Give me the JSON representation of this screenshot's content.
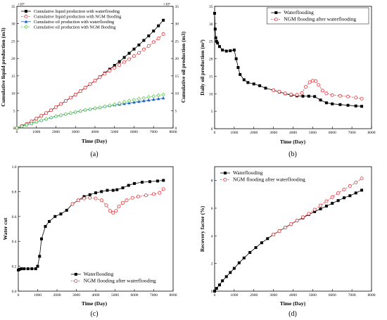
{
  "chart_data": [
    {
      "id": "a",
      "type": "line",
      "panel_label": "(a)",
      "xlabel": "Time (Day)",
      "ylabel": "Cumulative liquid production (m3)",
      "y2label": "Cumulative oil production (m3)",
      "multiplier_left": "×10⁴",
      "multiplier_right": "×10⁴",
      "xlim": [
        0,
        8000
      ],
      "ylim": [
        0,
        35
      ],
      "y2lim": [
        0,
        35
      ],
      "xticks": [
        0,
        1000,
        2000,
        3000,
        4000,
        5000,
        6000,
        7000,
        8000
      ],
      "yticks": [
        0,
        5,
        10,
        15,
        20,
        25,
        30,
        35
      ],
      "legend": "top-left",
      "series": [
        {
          "name": "Cumulative liquid production with waterflooding",
          "marker": "square",
          "color": "#000000",
          "x": [
            0,
            250,
            500,
            750,
            1000,
            1250,
            1500,
            1750,
            2000,
            2250,
            2500,
            2750,
            3000,
            3250,
            3500,
            3750,
            4000,
            4250,
            4500,
            4750,
            5000,
            5250,
            5500,
            5750,
            6000,
            6250,
            6500,
            6750,
            7000,
            7250,
            7500
          ],
          "y": [
            0,
            0.6,
            1.2,
            1.9,
            2.7,
            3.5,
            4.3,
            5.1,
            6.0,
            6.9,
            7.8,
            8.7,
            9.6,
            10.6,
            11.6,
            12.6,
            13.6,
            14.7,
            15.8,
            16.9,
            18.0,
            19.1,
            20.3,
            21.5,
            22.7,
            23.9,
            25.2,
            26.5,
            27.9,
            29.4,
            31.0
          ]
        },
        {
          "name": "Cumulative liquid production with NGM flooding",
          "marker": "circle-open",
          "color": "#e8343a",
          "x": [
            0,
            250,
            500,
            750,
            1000,
            1250,
            1500,
            1750,
            2000,
            2250,
            2500,
            2750,
            3000,
            3250,
            3500,
            3750,
            4000,
            4250,
            4500,
            4750,
            5000,
            5250,
            5500,
            5750,
            6000,
            6250,
            6500,
            6750,
            7000,
            7250,
            7500
          ],
          "y": [
            0,
            0.6,
            1.2,
            1.9,
            2.7,
            3.5,
            4.3,
            5.1,
            6.0,
            6.9,
            7.8,
            8.7,
            9.6,
            10.6,
            11.6,
            12.6,
            13.6,
            14.6,
            15.6,
            16.5,
            17.3,
            18.1,
            19.0,
            19.8,
            20.7,
            21.6,
            22.6,
            23.6,
            24.7,
            25.8,
            27.0
          ]
        },
        {
          "name": "Cumulative oil production with waterflooding",
          "marker": "triangle",
          "color": "#1f5fc8",
          "axis": "right",
          "x": [
            0,
            250,
            500,
            750,
            1000,
            1250,
            1500,
            1750,
            2000,
            2250,
            2500,
            2750,
            3000,
            3250,
            3500,
            3750,
            4000,
            4250,
            4500,
            4750,
            5000,
            5250,
            5500,
            5750,
            6000,
            6250,
            6500,
            6750,
            7000,
            7250,
            7500
          ],
          "y": [
            0,
            0.5,
            0.9,
            1.3,
            1.8,
            2.2,
            2.6,
            3.0,
            3.4,
            3.7,
            4.0,
            4.3,
            4.6,
            4.9,
            5.2,
            5.4,
            5.7,
            5.9,
            6.2,
            6.4,
            6.6,
            6.8,
            7.0,
            7.2,
            7.4,
            7.6,
            7.8,
            8.0,
            8.2,
            8.4,
            8.6
          ]
        },
        {
          "name": "Cumulative oil production with NGM flooding",
          "marker": "diamond-open",
          "color": "#66cc55",
          "axis": "right",
          "x": [
            0,
            250,
            500,
            750,
            1000,
            1250,
            1500,
            1750,
            2000,
            2250,
            2500,
            2750,
            3000,
            3250,
            3500,
            3750,
            4000,
            4250,
            4500,
            4750,
            5000,
            5250,
            5500,
            5750,
            6000,
            6250,
            6500,
            6750,
            7000,
            7250,
            7500
          ],
          "y": [
            0,
            0.5,
            0.9,
            1.3,
            1.8,
            2.2,
            2.6,
            3.0,
            3.4,
            3.7,
            4.0,
            4.3,
            4.6,
            4.9,
            5.2,
            5.4,
            5.7,
            5.9,
            6.2,
            6.5,
            6.8,
            7.1,
            7.5,
            7.8,
            8.1,
            8.4,
            8.6,
            8.9,
            9.1,
            9.4,
            9.6
          ]
        }
      ]
    },
    {
      "id": "b",
      "type": "line",
      "panel_label": "(b)",
      "xlabel": "Time (Day)",
      "ylabel": "Daily oil production (m³)",
      "xlim": [
        0,
        8000
      ],
      "ylim": [
        0,
        35
      ],
      "xticks": [
        0,
        1000,
        2000,
        3000,
        4000,
        5000,
        6000,
        7000,
        8000
      ],
      "yticks": [
        0,
        5,
        10,
        15,
        20,
        25,
        30,
        35
      ],
      "legend": "top-right",
      "series": [
        {
          "name": "Waterflooding",
          "marker": "square",
          "color": "#000000",
          "x": [
            0,
            30,
            60,
            100,
            150,
            250,
            400,
            600,
            800,
            1000,
            1100,
            1200,
            1300,
            1500,
            1700,
            2000,
            2300,
            2600,
            3000,
            3300,
            3600,
            3900,
            4200,
            4500,
            4800,
            5100,
            5400,
            5700,
            6000,
            6400,
            6800,
            7200,
            7500
          ],
          "y": [
            33,
            28.5,
            26,
            25,
            24.5,
            23.5,
            22.5,
            22.2,
            22.3,
            22.5,
            20,
            17.5,
            15.5,
            14,
            13.2,
            12.8,
            12.3,
            11.6,
            11,
            10.5,
            10,
            9.6,
            9.4,
            9.3,
            9.3,
            9.2,
            8.2,
            7.4,
            7.1,
            6.9,
            6.7,
            6.5,
            6.4
          ]
        },
        {
          "name": "NGM flooding after waterflooding",
          "marker": "circle-open",
          "color": "#e8343a",
          "x": [
            3000,
            3300,
            3600,
            3900,
            4200,
            4450,
            4650,
            4850,
            5000,
            5150,
            5300,
            5500,
            5700,
            6000,
            6400,
            6800,
            7200,
            7500
          ],
          "y": [
            11,
            10.6,
            10.1,
            9.8,
            9.7,
            10.2,
            12,
            13.3,
            13.7,
            13.6,
            12.5,
            10.9,
            10.1,
            9.6,
            9.4,
            9.2,
            8.9,
            8.6
          ]
        }
      ]
    },
    {
      "id": "c",
      "type": "line",
      "panel_label": "(c)",
      "xlabel": "Time (Day)",
      "ylabel": "Water cut",
      "xlim": [
        0,
        8000
      ],
      "ylim": [
        0.0,
        1.0
      ],
      "xticks": [
        0,
        1000,
        2000,
        3000,
        4000,
        5000,
        6000,
        7000,
        8000
      ],
      "yticks": [
        "0.0",
        "0.2",
        "0.4",
        "0.6",
        "0.8",
        "1.0"
      ],
      "legend": "bottom-right",
      "series": [
        {
          "name": "Waterflooding",
          "marker": "square",
          "color": "#000000",
          "x": [
            0,
            60,
            150,
            300,
            500,
            700,
            900,
            1000,
            1100,
            1200,
            1400,
            1600,
            1900,
            2200,
            2500,
            2800,
            3100,
            3400,
            3700,
            4000,
            4300,
            4600,
            4900,
            5100,
            5400,
            5700,
            6000,
            6400,
            6800,
            7200,
            7500
          ],
          "y": [
            0.17,
            0.175,
            0.18,
            0.18,
            0.18,
            0.18,
            0.18,
            0.2,
            0.28,
            0.42,
            0.52,
            0.56,
            0.6,
            0.62,
            0.65,
            0.7,
            0.73,
            0.76,
            0.775,
            0.79,
            0.8,
            0.81,
            0.81,
            0.815,
            0.83,
            0.85,
            0.865,
            0.875,
            0.88,
            0.885,
            0.89
          ]
        },
        {
          "name": "NGM flooding after waterflooding",
          "marker": "circle-open",
          "color": "#e8343a",
          "x": [
            2800,
            3100,
            3400,
            3700,
            4000,
            4300,
            4550,
            4750,
            4900,
            5050,
            5200,
            5400,
            5600,
            5900,
            6200,
            6600,
            7000,
            7300,
            7500
          ],
          "y": [
            0.7,
            0.73,
            0.745,
            0.75,
            0.745,
            0.73,
            0.69,
            0.645,
            0.63,
            0.645,
            0.68,
            0.71,
            0.73,
            0.75,
            0.76,
            0.77,
            0.78,
            0.79,
            0.82
          ]
        }
      ]
    },
    {
      "id": "d",
      "type": "line",
      "panel_label": "(d)",
      "xlabel": "Time (Day)",
      "ylabel": "Recovery factor (%)",
      "xlim": [
        0,
        8000
      ],
      "ylim": [
        0,
        9
      ],
      "xticks": [
        0,
        1000,
        2000,
        3000,
        4000,
        5000,
        6000,
        7000,
        8000
      ],
      "yticks": [
        0,
        2,
        4,
        6,
        8
      ],
      "legend": "top-left",
      "series": [
        {
          "name": "Waterflooding",
          "marker": "square",
          "color": "#000000",
          "x": [
            0,
            100,
            250,
            400,
            600,
            800,
            1000,
            1250,
            1500,
            1800,
            2100,
            2400,
            2700,
            3000,
            3300,
            3600,
            3900,
            4200,
            4500,
            4800,
            5100,
            5400,
            5700,
            6000,
            6300,
            6600,
            6900,
            7200,
            7500
          ],
          "y": [
            0,
            0.2,
            0.45,
            0.75,
            1.05,
            1.35,
            1.65,
            2.05,
            2.4,
            2.8,
            3.15,
            3.5,
            3.8,
            4.1,
            4.35,
            4.6,
            4.85,
            5.1,
            5.3,
            5.55,
            5.75,
            5.95,
            6.15,
            6.35,
            6.55,
            6.75,
            6.9,
            7.1,
            7.3
          ]
        },
        {
          "name": "NGM flooding after waterflooding",
          "marker": "circle-open",
          "color": "#e8343a",
          "x": [
            3000,
            3300,
            3600,
            3900,
            4200,
            4500,
            4800,
            5100,
            5400,
            5700,
            6000,
            6300,
            6600,
            6900,
            7200,
            7500
          ],
          "y": [
            4.1,
            4.35,
            4.6,
            4.85,
            5.1,
            5.35,
            5.6,
            5.9,
            6.2,
            6.5,
            6.8,
            7.1,
            7.35,
            7.6,
            7.85,
            8.15
          ]
        }
      ]
    }
  ]
}
